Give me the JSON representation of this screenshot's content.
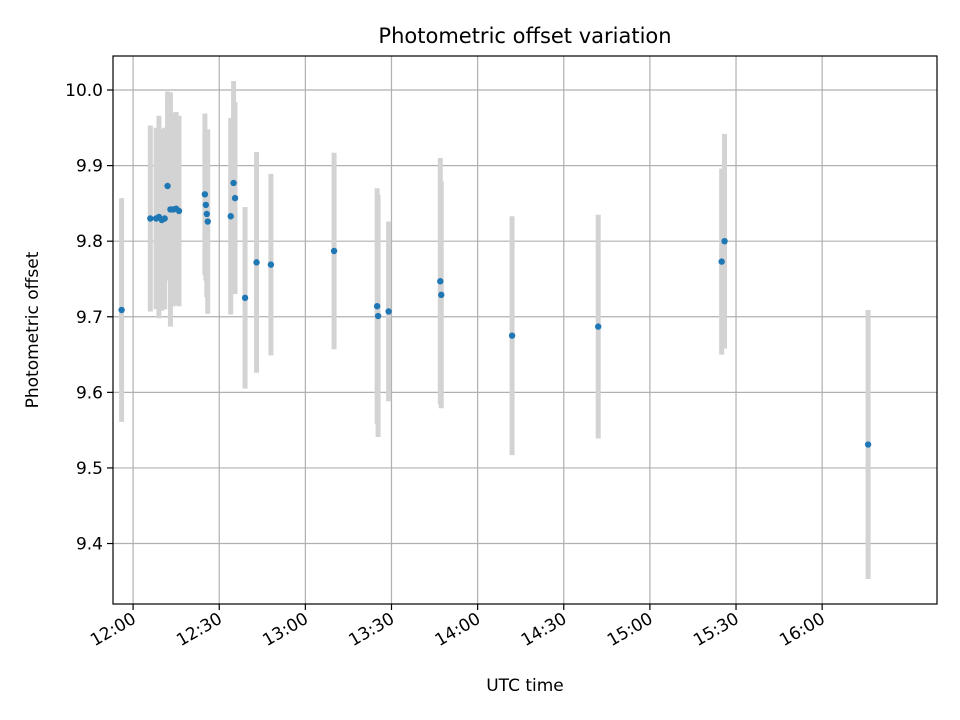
{
  "chart_data": {
    "type": "scatter",
    "title": "Photometric offset variation",
    "xlabel": "UTC time",
    "ylabel": "Photometric offset",
    "grid": true,
    "x_ticks": [
      "12:00",
      "12:30",
      "13:00",
      "13:30",
      "14:00",
      "14:30",
      "15:00",
      "15:30",
      "16:00"
    ],
    "y_ticks": [
      "9.4",
      "9.5",
      "9.6",
      "9.7",
      "9.8",
      "9.9",
      "10.0"
    ],
    "xlim": [
      "11:53",
      "16:40"
    ],
    "ylim": [
      9.32,
      10.045
    ],
    "colors": {
      "points": "#1f77b4",
      "error_bars": "#d3d3d3",
      "grid": "#b0b0b0"
    },
    "points": [
      {
        "x": "11:56:00",
        "y": 9.709,
        "yerr": 0.148
      },
      {
        "x": "12:06:00",
        "y": 9.83,
        "yerr": 0.123
      },
      {
        "x": "12:08:00",
        "y": 9.83,
        "yerr": 0.12
      },
      {
        "x": "12:09:00",
        "y": 9.832,
        "yerr": 0.134
      },
      {
        "x": "12:10:00",
        "y": 9.828,
        "yerr": 0.12
      },
      {
        "x": "12:11:00",
        "y": 9.83,
        "yerr": 0.12
      },
      {
        "x": "12:12:00",
        "y": 9.873,
        "yerr": 0.125
      },
      {
        "x": "12:13:00",
        "y": 9.842,
        "yerr": 0.155
      },
      {
        "x": "12:14:00",
        "y": 9.842,
        "yerr": 0.128
      },
      {
        "x": "12:15:00",
        "y": 9.843,
        "yerr": 0.128
      },
      {
        "x": "12:16:00",
        "y": 9.84,
        "yerr": 0.126
      },
      {
        "x": "12:25:00",
        "y": 9.862,
        "yerr": 0.107
      },
      {
        "x": "12:25:20",
        "y": 9.848,
        "yerr": 0.1
      },
      {
        "x": "12:25:40",
        "y": 9.836,
        "yerr": 0.11
      },
      {
        "x": "12:26:00",
        "y": 9.826,
        "yerr": 0.122
      },
      {
        "x": "12:34:00",
        "y": 9.833,
        "yerr": 0.13
      },
      {
        "x": "12:35:00",
        "y": 9.877,
        "yerr": 0.135
      },
      {
        "x": "12:35:30",
        "y": 9.857,
        "yerr": 0.127
      },
      {
        "x": "12:39:00",
        "y": 9.725,
        "yerr": 0.12
      },
      {
        "x": "12:43:00",
        "y": 9.772,
        "yerr": 0.146
      },
      {
        "x": "12:48:00",
        "y": 9.769,
        "yerr": 0.12
      },
      {
        "x": "13:10:00",
        "y": 9.787,
        "yerr": 0.13
      },
      {
        "x": "13:25:00",
        "y": 9.714,
        "yerr": 0.156
      },
      {
        "x": "13:25:20",
        "y": 9.701,
        "yerr": 0.16
      },
      {
        "x": "13:29:00",
        "y": 9.707,
        "yerr": 0.119
      },
      {
        "x": "13:47:00",
        "y": 9.747,
        "yerr": 0.163
      },
      {
        "x": "13:47:20",
        "y": 9.729,
        "yerr": 0.15
      },
      {
        "x": "14:12:00",
        "y": 9.675,
        "yerr": 0.158
      },
      {
        "x": "14:42:00",
        "y": 9.687,
        "yerr": 0.148
      },
      {
        "x": "15:25:00",
        "y": 9.773,
        "yerr": 0.123
      },
      {
        "x": "15:26:00",
        "y": 9.8,
        "yerr": 0.142
      },
      {
        "x": "16:16:00",
        "y": 9.531,
        "yerr": 0.178
      }
    ]
  }
}
